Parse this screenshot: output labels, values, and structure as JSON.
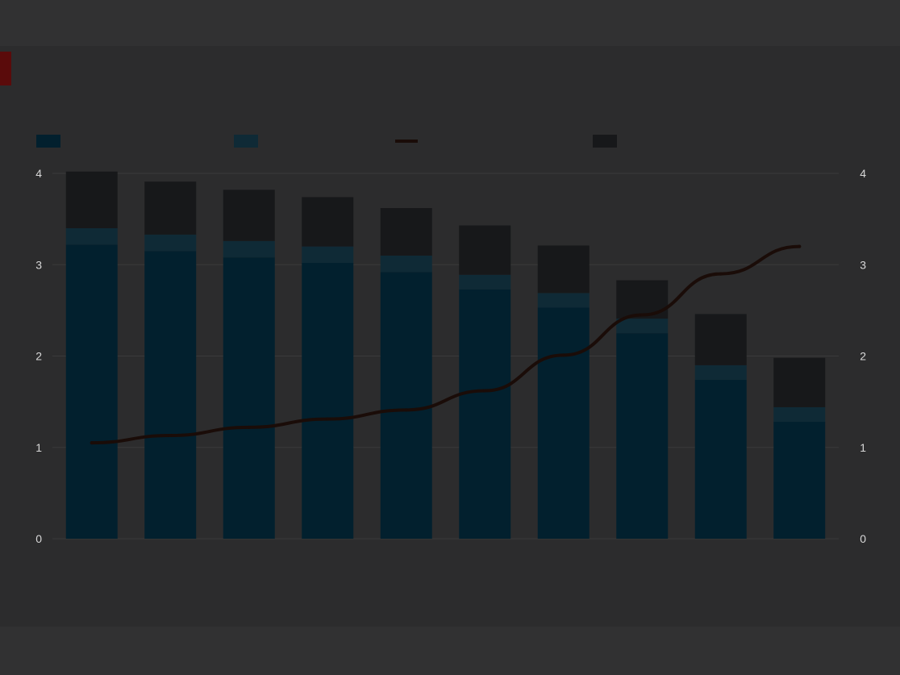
{
  "colors": {
    "background": "#313132",
    "panel": "#2c2c2d",
    "accent": "#5a0b0b",
    "bar_main": "#02202e",
    "bar_mid": "#0f2a36",
    "bar_top": "#17181a",
    "line": "#1a0c08",
    "grid": "#3a3a3b"
  },
  "chart_data": {
    "type": "bar",
    "title": "",
    "subtitle": "",
    "source": "",
    "right_axis_title": "",
    "legend": [
      "",
      "",
      "",
      ""
    ],
    "categories": [
      "",
      "",
      "",
      "",
      "",
      "",
      "",
      "",
      "",
      ""
    ],
    "ylim_left": [
      0,
      4
    ],
    "yticks_left": [
      "0",
      "1",
      "2",
      "3",
      "4"
    ],
    "ylim_right": [
      0,
      4
    ],
    "yticks_right": [
      "0",
      "1",
      "2",
      "3",
      "4"
    ],
    "series": [
      {
        "values": [
          3.22,
          3.15,
          3.08,
          3.02,
          2.92,
          2.73,
          2.53,
          2.25,
          1.74,
          1.28
        ]
      },
      {
        "values": [
          0.18,
          0.18,
          0.18,
          0.18,
          0.18,
          0.16,
          0.16,
          0.16,
          0.16,
          0.16
        ]
      },
      {
        "values": [
          0.62,
          0.58,
          0.56,
          0.54,
          0.52,
          0.54,
          0.52,
          0.42,
          0.56,
          0.54
        ]
      }
    ],
    "line_series": {
      "values": [
        1.05,
        1.13,
        1.22,
        1.31,
        1.41,
        1.62,
        2.01,
        2.45,
        2.9,
        3.2
      ]
    },
    "grid": true,
    "legend_position": "top"
  }
}
